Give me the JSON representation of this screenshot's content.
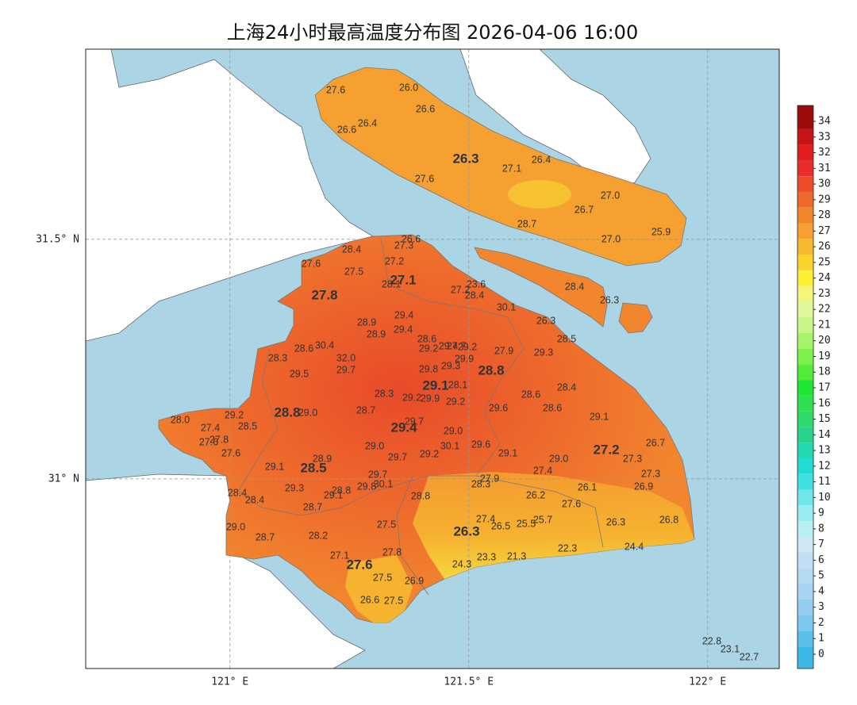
{
  "map": {
    "title": "上海24小时最高温度分布图 2026-04-06 16:00",
    "xlim": [
      120.698,
      122.15
    ],
    "ylim": [
      30.604,
      31.897
    ],
    "xticks": [
      {
        "value": 121,
        "label": "121° E"
      },
      {
        "value": 121.5,
        "label": "121.5° E"
      },
      {
        "value": 122,
        "label": "122° E"
      }
    ],
    "yticks": [
      {
        "value": 31,
        "label": "31° N"
      },
      {
        "value": 31.5,
        "label": "31.5° N"
      }
    ],
    "grid": true,
    "sea_color": "#abd5e4",
    "colorbar": {
      "ticks": [
        0,
        1,
        2,
        3,
        4,
        5,
        6,
        7,
        8,
        9,
        10,
        11,
        12,
        13,
        14,
        15,
        16,
        17,
        18,
        19,
        20,
        21,
        22,
        23,
        24,
        25,
        26,
        27,
        28,
        29,
        30,
        31,
        32,
        33,
        34
      ],
      "colors": [
        "#3db7e6",
        "#5cbfea",
        "#7cc8ee",
        "#93cef0",
        "#a6d4f2",
        "#b3d9f3",
        "#c1def5",
        "#cfe6f5",
        "#b7f0f2",
        "#98ecef",
        "#6fe6ea",
        "#3fe0e4",
        "#22dcd4",
        "#22d8b0",
        "#28d48a",
        "#2fd86a",
        "#2ee050",
        "#1fe632",
        "#53ea3a",
        "#7ef04d",
        "#a7f36a",
        "#c8f58a",
        "#e1f89a",
        "#f5f57a",
        "#fbf033",
        "#fbd22c",
        "#f6b830",
        "#f5a030",
        "#f2862e",
        "#ee6a2c",
        "#ec4c2a",
        "#ea2c2c",
        "#e01e1e",
        "#c81414",
        "#9c0a0a"
      ]
    },
    "station_values": [
      "27.6",
      "26.0",
      "26.6",
      "26.4",
      "26.6",
      "27.1",
      "26.4",
      "27.6",
      "27.0",
      "26.7",
      "28.7",
      "27.0",
      "25.9",
      "28.4",
      "26.3",
      "26.6",
      "27.3",
      "28.4",
      "27.6",
      "27.2",
      "27.5",
      "28.1",
      "23.6",
      "27.2",
      "28.4",
      "30.1",
      "29.4",
      "28.9",
      "29.4",
      "28.9",
      "26.3",
      "28.5",
      "28.6",
      "29.2",
      "29.4",
      "27.7",
      "29.2",
      "30.4",
      "28.6",
      "27.9",
      "29.3",
      "28.3",
      "32.0",
      "29.9",
      "29.7",
      "29.3",
      "29.8",
      "29.5",
      "28.1",
      "28.4",
      "28.3",
      "28.6",
      "29.2",
      "29.9",
      "29.2",
      "28.6",
      "29.6",
      "28.7",
      "29.0",
      "29.2",
      "28.0",
      "29.1",
      "28.5",
      "29.7",
      "27.4",
      "29.0",
      "27.8",
      "27.6",
      "26.7",
      "29.0",
      "29.6",
      "30.1",
      "29.1",
      "27.6",
      "29.7",
      "29.2",
      "29.0",
      "27.3",
      "28.9",
      "29.1",
      "27.4",
      "27.3",
      "29.7",
      "27.9",
      "30.1",
      "28.3",
      "26.1",
      "26.9",
      "29.3",
      "29.8",
      "28.8",
      "29.1",
      "28.4",
      "28.4",
      "28.8",
      "26.2",
      "27.6",
      "28.7",
      "27.4",
      "25.7",
      "26.5",
      "25.5",
      "29.0",
      "27.5",
      "26.3",
      "26.8",
      "28.2",
      "28.7",
      "22.3",
      "24.4",
      "27.1",
      "27.8",
      "23.3",
      "21.3",
      "24.3",
      "27.5",
      "26.9",
      "26.6",
      "27.5",
      "22.8",
      "23.1",
      "22.7"
    ],
    "district_values": [
      "26.3",
      "27.1",
      "27.8",
      "28.8",
      "29.1",
      "28.8",
      "29.4",
      "27.2",
      "28.5",
      "26.3",
      "27.6"
    ]
  }
}
